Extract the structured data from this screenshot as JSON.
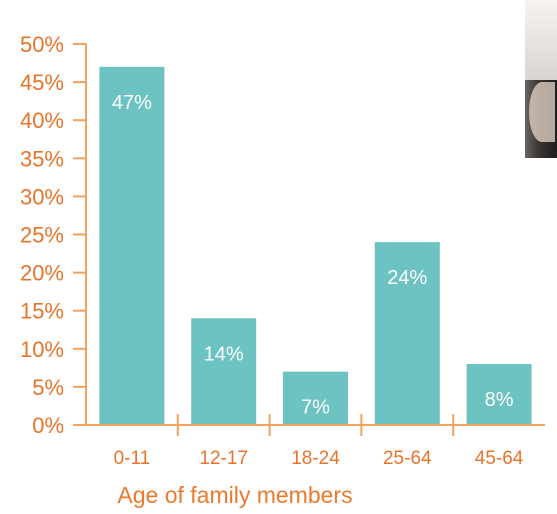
{
  "colors": {
    "bar": "#6cc3c1",
    "axis": "#f5a15c",
    "tick_text": "#e8742a",
    "axis_title": "#ea7b2e",
    "data_label": "#ffffff"
  },
  "photo": {
    "icon": "person-photo-icon"
  },
  "chart_data": {
    "type": "bar",
    "categories": [
      "0-11",
      "12-17",
      "18-24",
      "25-64",
      "45-64"
    ],
    "values": [
      47,
      14,
      7,
      24,
      8
    ],
    "data_labels": [
      "47%",
      "14%",
      "7%",
      "24%",
      "8%"
    ],
    "xlabel": "Age of family members",
    "ylabel": "",
    "ylim": [
      0,
      50
    ],
    "yticks": [
      "0%",
      "5%",
      "10%",
      "15%",
      "20%",
      "25%",
      "30%",
      "35%",
      "40%",
      "45%",
      "50%"
    ],
    "grid": false
  }
}
